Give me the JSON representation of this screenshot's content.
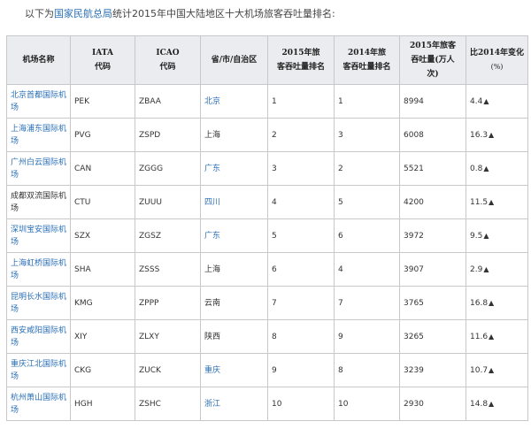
{
  "intro": {
    "prefix": "以下为",
    "link": "国家民航总局",
    "suffix": "统计2015年中国大陆地区十大机场旅客吞吐量排名:"
  },
  "table": {
    "headers": {
      "name": "机场名称",
      "iata_top": "IATA",
      "iata_bottom": "代码",
      "icao_top": "ICAO",
      "icao_bottom": "代码",
      "region": "省/市/自治区",
      "rank2015_top": "2015年旅",
      "rank2015_bottom": "客吞吐量排名",
      "rank2014_top": "2014年旅",
      "rank2014_bottom": "客吞吐量排名",
      "volume_top": "2015年旅客",
      "volume_mid": "吞吐量(万人",
      "volume_bottom": "次)",
      "change_top": "比2014年变化",
      "change_bottom": "(%)"
    },
    "up_symbol": "▲",
    "rows": [
      {
        "name_a": "北京首都国际机",
        "name_b": "场",
        "name_link": true,
        "iata": "PEK",
        "icao": "ZBAA",
        "region": "北京",
        "region_link": true,
        "rank2015": "1",
        "rank2014": "1",
        "volume": "8994",
        "change": "4.4"
      },
      {
        "name_a": "上海浦东国际机",
        "name_b": "场",
        "name_link": true,
        "iata": "PVG",
        "icao": "ZSPD",
        "region": "上海",
        "region_link": false,
        "rank2015": "2",
        "rank2014": "3",
        "volume": "6008",
        "change": "16.3"
      },
      {
        "name_a": "广州白云国际机",
        "name_b": "场",
        "name_link": true,
        "iata": "CAN",
        "icao": "ZGGG",
        "region": "广东",
        "region_link": true,
        "rank2015": "3",
        "rank2014": "2",
        "volume": "5521",
        "change": "0.8"
      },
      {
        "name_a": "成都双流国际机",
        "name_b": "场",
        "name_link": false,
        "iata": "CTU",
        "icao": "ZUUU",
        "region": "四川",
        "region_link": true,
        "rank2015": "4",
        "rank2014": "5",
        "volume": "4200",
        "change": "11.5"
      },
      {
        "name_a": "深圳宝安国际机",
        "name_b": "场",
        "name_link": true,
        "iata": "SZX",
        "icao": "ZGSZ",
        "region": "广东",
        "region_link": true,
        "rank2015": "5",
        "rank2014": "6",
        "volume": "3972",
        "change": "9.5"
      },
      {
        "name_a": "上海虹桥国际机",
        "name_b": "场",
        "name_link": true,
        "iata": "SHA",
        "icao": "ZSSS",
        "region": "上海",
        "region_link": false,
        "rank2015": "6",
        "rank2014": "4",
        "volume": "3907",
        "change": "2.9"
      },
      {
        "name_a": "昆明长水国际机",
        "name_b": "场",
        "name_link": true,
        "iata": "KMG",
        "icao": "ZPPP",
        "region": "云南",
        "region_link": false,
        "rank2015": "7",
        "rank2014": "7",
        "volume": "3765",
        "change": "16.8"
      },
      {
        "name_a": "西安咸阳国际机",
        "name_b": "场",
        "name_link": true,
        "iata": "XIY",
        "icao": "ZLXY",
        "region": "陕西",
        "region_link": false,
        "rank2015": "8",
        "rank2014": "9",
        "volume": "3265",
        "change": "11.6"
      },
      {
        "name_a": "重庆江北国际机",
        "name_b": "场",
        "name_link": true,
        "iata": "CKG",
        "icao": "ZUCK",
        "region": "重庆",
        "region_link": true,
        "rank2015": "9",
        "rank2014": "8",
        "volume": "3239",
        "change": "10.7"
      },
      {
        "name_a": "杭州萧山国际机",
        "name_b": "场",
        "name_link": true,
        "iata": "HGH",
        "icao": "ZSHC",
        "region": "浙江",
        "region_link": true,
        "rank2015": "10",
        "rank2014": "10",
        "volume": "2930",
        "change": "14.8"
      }
    ]
  },
  "colors": {
    "link": "#2a6fb5",
    "header_bg": "#eaecf0",
    "border": "#c8c8c8",
    "text": "#333333"
  }
}
